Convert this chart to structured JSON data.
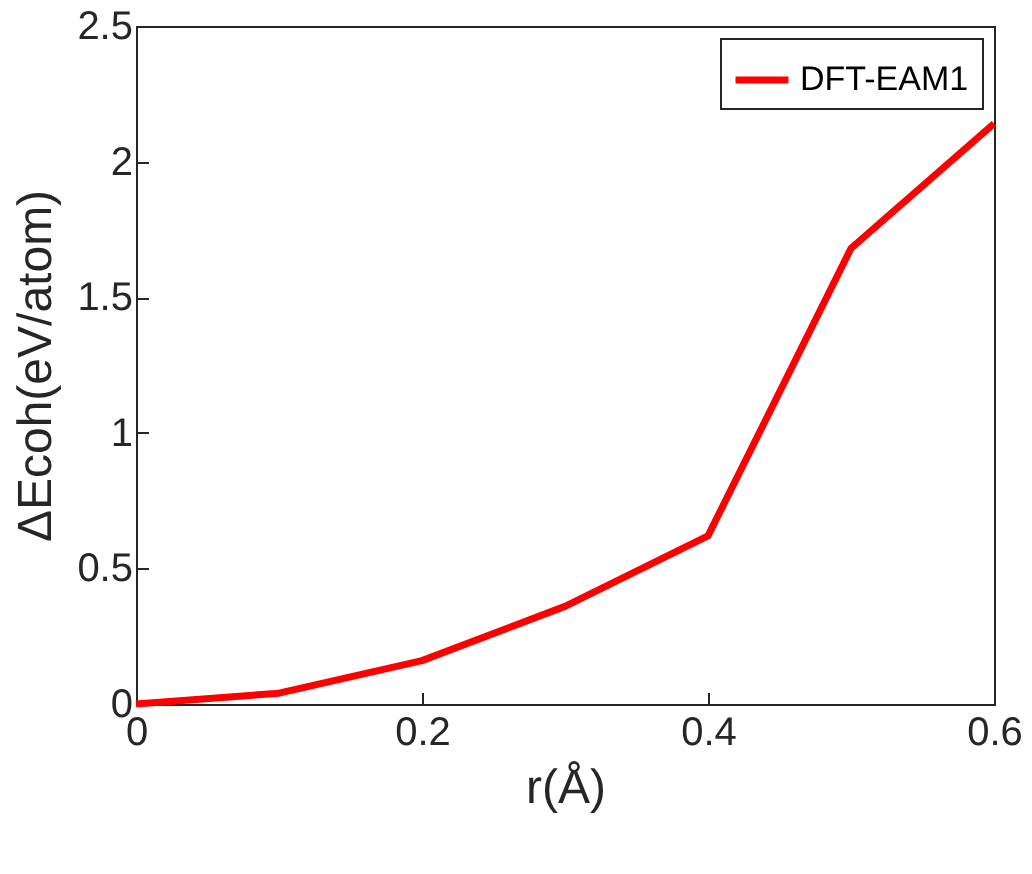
{
  "chart_data": {
    "type": "line",
    "xlabel": "r(Å)",
    "ylabel": "ΔEcoh(eV/atom)",
    "x": [
      0,
      0.1,
      0.2,
      0.3,
      0.4,
      0.5,
      0.6
    ],
    "series": [
      {
        "name": "DFT-EAM1",
        "color": "#ff0000",
        "values": [
          0,
          0.04,
          0.16,
          0.36,
          0.62,
          1.68,
          2.14
        ]
      }
    ],
    "xlim": [
      0,
      0.6
    ],
    "xticks": [
      0,
      0.2,
      0.4,
      0.6
    ],
    "ylim": [
      0,
      2.5
    ],
    "yticks": [
      0,
      0.5,
      1,
      1.5,
      2,
      2.5
    ],
    "legend": "top right",
    "grid": false,
    "marker": "none",
    "line_style": "solid"
  }
}
